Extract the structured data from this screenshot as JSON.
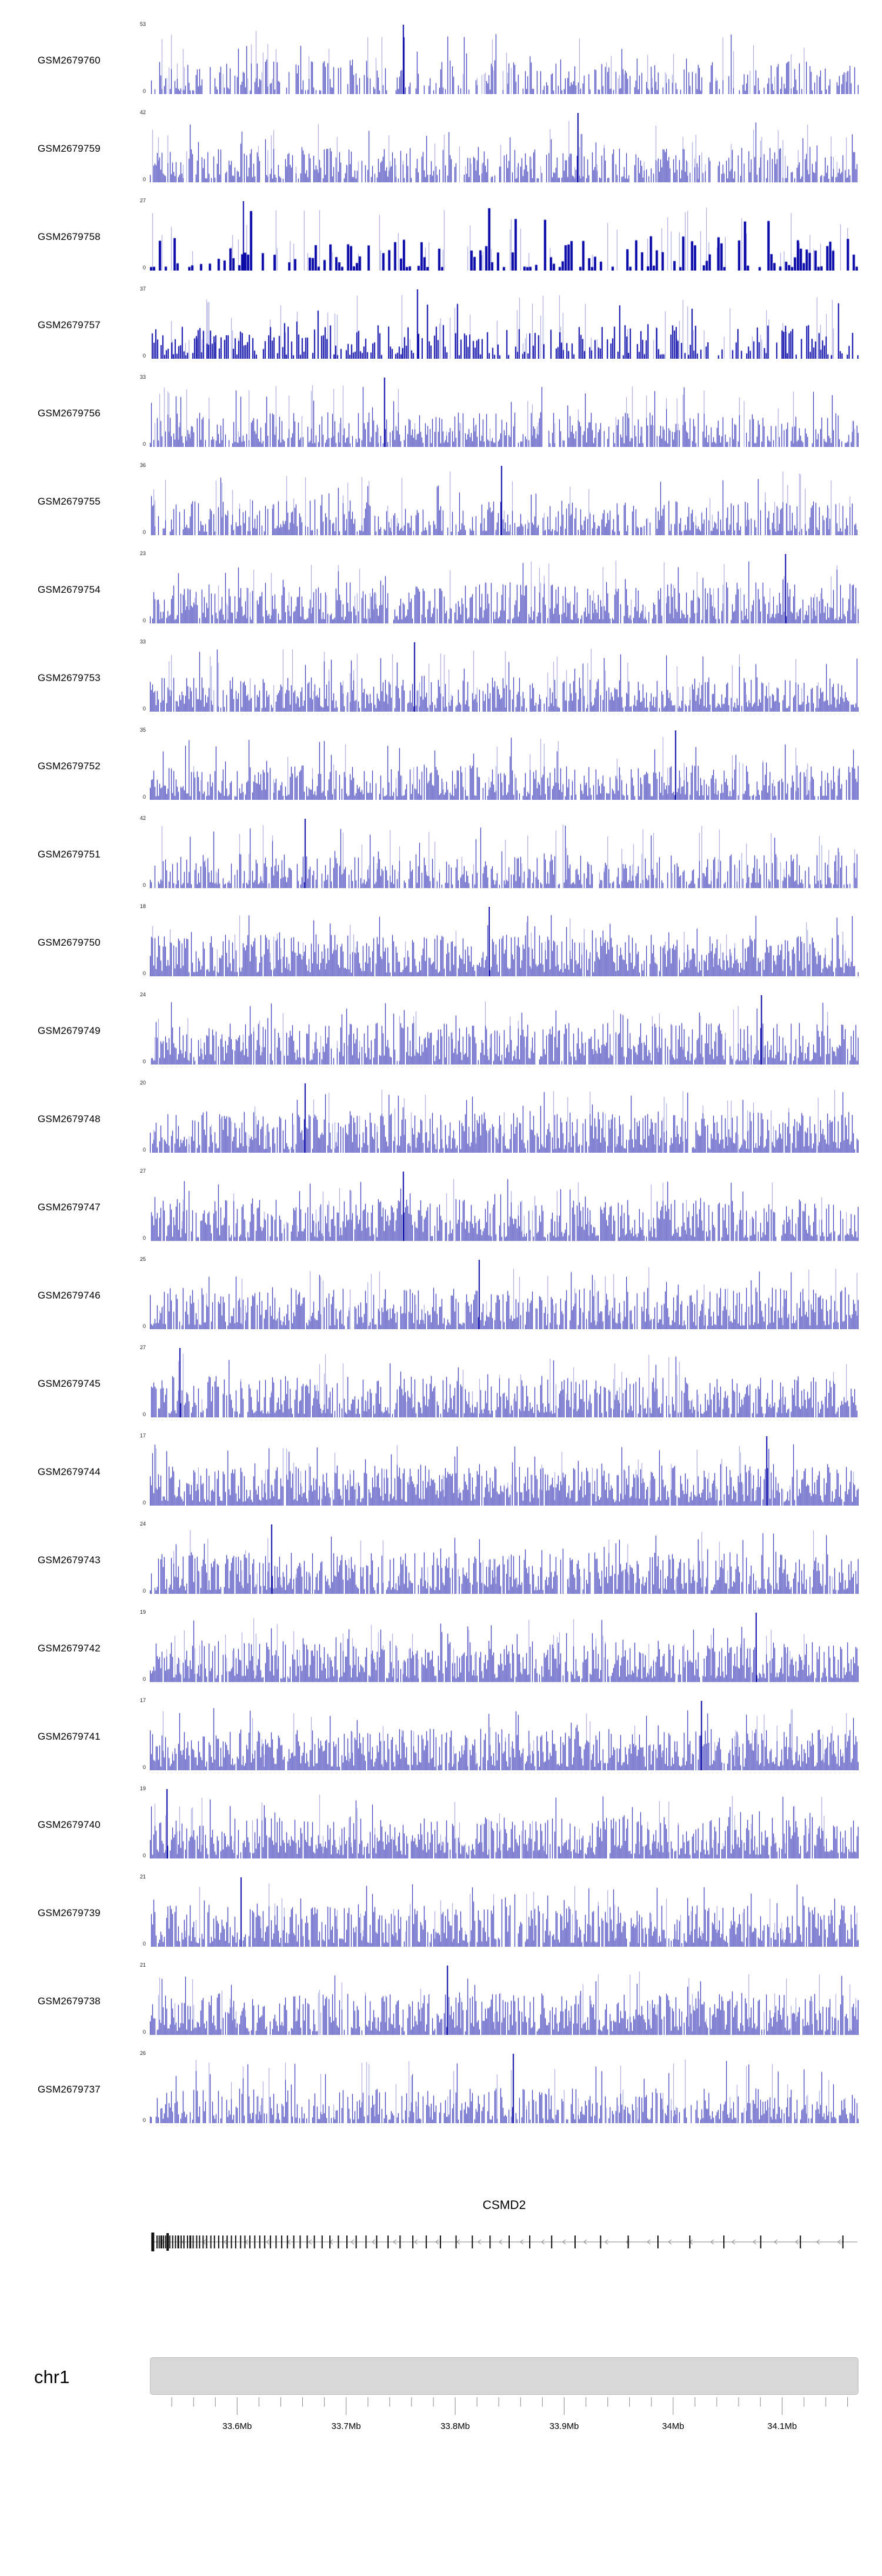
{
  "figure": {
    "colors": {
      "signal_dark": "#0a0aa8",
      "signal_light": "#9a9ade",
      "ideogram": "#d8d8d8",
      "axis": "#8a8a8a",
      "exon": "#111111",
      "gene_line": "#8a8a8a"
    }
  },
  "chart_data": {
    "type": "area",
    "title": "",
    "xlabel": "",
    "ylabel": "",
    "description": "Genome browser read-coverage tracks for 24 GEO samples over the CSMD2 locus on chr1 (~33.52Mb-34.17Mb). Each track is a dense coverage histogram from 0 to the per-track maximum shown at its upper left.",
    "region": {
      "chromosome": "chr1",
      "start_mb": 33.52,
      "end_mb": 34.17
    },
    "x_axis": {
      "tick_labels": [
        "33.6Mb",
        "33.7Mb",
        "33.8Mb",
        "33.9Mb",
        "34Mb",
        "34.1Mb"
      ],
      "tick_values_mb": [
        33.6,
        33.7,
        33.8,
        33.9,
        34.0,
        34.1
      ],
      "minor_step_mb": 0.02,
      "major_step_mb": 0.1
    },
    "tracks": [
      {
        "label": "GSM2679760",
        "ymin": 0,
        "ymax": 53,
        "seed": 1,
        "density": 0.55,
        "barw": 2
      },
      {
        "label": "GSM2679759",
        "ymin": 0,
        "ymax": 42,
        "seed": 2,
        "density": 0.7,
        "barw": 2
      },
      {
        "label": "GSM2679758",
        "ymin": 0,
        "ymax": 27,
        "seed": 3,
        "density": 0.5,
        "barw": 5
      },
      {
        "label": "GSM2679757",
        "ymin": 0,
        "ymax": 37,
        "seed": 4,
        "density": 0.65,
        "barw": 3
      },
      {
        "label": "GSM2679756",
        "ymin": 0,
        "ymax": 33,
        "seed": 5,
        "density": 0.75,
        "barw": 2
      },
      {
        "label": "GSM2679755",
        "ymin": 0,
        "ymax": 36,
        "seed": 6,
        "density": 0.7,
        "barw": 2
      },
      {
        "label": "GSM2679754",
        "ymin": 0,
        "ymax": 23,
        "seed": 7,
        "density": 0.85,
        "barw": 2
      },
      {
        "label": "GSM2679753",
        "ymin": 0,
        "ymax": 33,
        "seed": 8,
        "density": 0.8,
        "barw": 2
      },
      {
        "label": "GSM2679752",
        "ymin": 0,
        "ymax": 35,
        "seed": 9,
        "density": 0.8,
        "barw": 2
      },
      {
        "label": "GSM2679751",
        "ymin": 0,
        "ymax": 42,
        "seed": 10,
        "density": 0.7,
        "barw": 2
      },
      {
        "label": "GSM2679750",
        "ymin": 0,
        "ymax": 18,
        "seed": 11,
        "density": 0.95,
        "barw": 2
      },
      {
        "label": "GSM2679749",
        "ymin": 0,
        "ymax": 24,
        "seed": 12,
        "density": 0.85,
        "barw": 2
      },
      {
        "label": "GSM2679748",
        "ymin": 0,
        "ymax": 20,
        "seed": 13,
        "density": 0.9,
        "barw": 2
      },
      {
        "label": "GSM2679747",
        "ymin": 0,
        "ymax": 27,
        "seed": 14,
        "density": 0.85,
        "barw": 2
      },
      {
        "label": "GSM2679746",
        "ymin": 0,
        "ymax": 25,
        "seed": 15,
        "density": 0.85,
        "barw": 2
      },
      {
        "label": "GSM2679745",
        "ymin": 0,
        "ymax": 27,
        "seed": 16,
        "density": 0.85,
        "barw": 2
      },
      {
        "label": "GSM2679744",
        "ymin": 0,
        "ymax": 17,
        "seed": 17,
        "density": 0.95,
        "barw": 2
      },
      {
        "label": "GSM2679743",
        "ymin": 0,
        "ymax": 24,
        "seed": 18,
        "density": 0.85,
        "barw": 2
      },
      {
        "label": "GSM2679742",
        "ymin": 0,
        "ymax": 19,
        "seed": 19,
        "density": 0.9,
        "barw": 2
      },
      {
        "label": "GSM2679741",
        "ymin": 0,
        "ymax": 17,
        "seed": 20,
        "density": 0.95,
        "barw": 2
      },
      {
        "label": "GSM2679740",
        "ymin": 0,
        "ymax": 19,
        "seed": 21,
        "density": 0.9,
        "barw": 2
      },
      {
        "label": "GSM2679739",
        "ymin": 0,
        "ymax": 21,
        "seed": 22,
        "density": 0.85,
        "barw": 2
      },
      {
        "label": "GSM2679738",
        "ymin": 0,
        "ymax": 21,
        "seed": 23,
        "density": 0.9,
        "barw": 2
      },
      {
        "label": "GSM2679737",
        "ymin": 0,
        "ymax": 26,
        "seed": 24,
        "density": 0.75,
        "barw": 2
      }
    ],
    "gene_track": {
      "gene": "CSMD2",
      "strand": "-",
      "exons": [
        [
          0.004,
          5,
          32
        ],
        [
          0.01,
          2,
          22
        ],
        [
          0.013,
          2,
          22
        ],
        [
          0.016,
          3,
          22
        ],
        [
          0.019,
          2,
          22
        ],
        [
          0.022,
          2,
          22
        ],
        [
          0.025,
          4,
          30
        ],
        [
          0.028,
          2,
          22
        ],
        [
          0.032,
          2,
          22
        ],
        [
          0.036,
          2,
          22
        ],
        [
          0.04,
          3,
          22
        ],
        [
          0.044,
          2,
          22
        ],
        [
          0.048,
          2,
          22
        ],
        [
          0.053,
          2,
          22
        ],
        [
          0.057,
          3,
          22
        ],
        [
          0.061,
          2,
          22
        ],
        [
          0.066,
          2,
          22
        ],
        [
          0.07,
          2,
          22
        ],
        [
          0.075,
          2,
          22
        ],
        [
          0.08,
          2,
          22
        ],
        [
          0.086,
          2,
          22
        ],
        [
          0.091,
          2,
          22
        ],
        [
          0.097,
          2,
          22
        ],
        [
          0.103,
          2,
          22
        ],
        [
          0.109,
          2,
          22
        ],
        [
          0.115,
          2,
          22
        ],
        [
          0.121,
          2,
          22
        ],
        [
          0.128,
          2,
          22
        ],
        [
          0.134,
          2,
          22
        ],
        [
          0.141,
          2,
          22
        ],
        [
          0.148,
          2,
          22
        ],
        [
          0.155,
          2,
          22
        ],
        [
          0.162,
          2,
          22
        ],
        [
          0.17,
          2,
          22
        ],
        [
          0.178,
          2,
          22
        ],
        [
          0.186,
          2,
          22
        ],
        [
          0.194,
          2,
          22
        ],
        [
          0.203,
          2,
          22
        ],
        [
          0.212,
          2,
          22
        ],
        [
          0.222,
          2,
          22
        ],
        [
          0.232,
          2,
          22
        ],
        [
          0.243,
          2,
          22
        ],
        [
          0.254,
          2,
          22
        ],
        [
          0.266,
          2,
          22
        ],
        [
          0.278,
          2,
          22
        ],
        [
          0.291,
          2,
          22
        ],
        [
          0.305,
          2,
          22
        ],
        [
          0.32,
          2,
          22
        ],
        [
          0.336,
          2,
          22
        ],
        [
          0.353,
          2,
          22
        ],
        [
          0.371,
          2,
          22
        ],
        [
          0.39,
          2,
          22
        ],
        [
          0.41,
          2,
          22
        ],
        [
          0.432,
          2,
          22
        ],
        [
          0.455,
          2,
          22
        ],
        [
          0.48,
          2,
          22
        ],
        [
          0.507,
          2,
          22
        ],
        [
          0.536,
          2,
          22
        ],
        [
          0.567,
          2,
          22
        ],
        [
          0.6,
          2,
          22
        ],
        [
          0.636,
          2,
          22
        ],
        [
          0.675,
          2,
          22
        ],
        [
          0.717,
          2,
          22
        ],
        [
          0.762,
          2,
          22
        ],
        [
          0.81,
          2,
          22
        ],
        [
          0.862,
          2,
          22
        ],
        [
          0.918,
          2,
          22
        ],
        [
          0.978,
          2,
          22
        ]
      ]
    },
    "chromosome_label": "chr1"
  }
}
